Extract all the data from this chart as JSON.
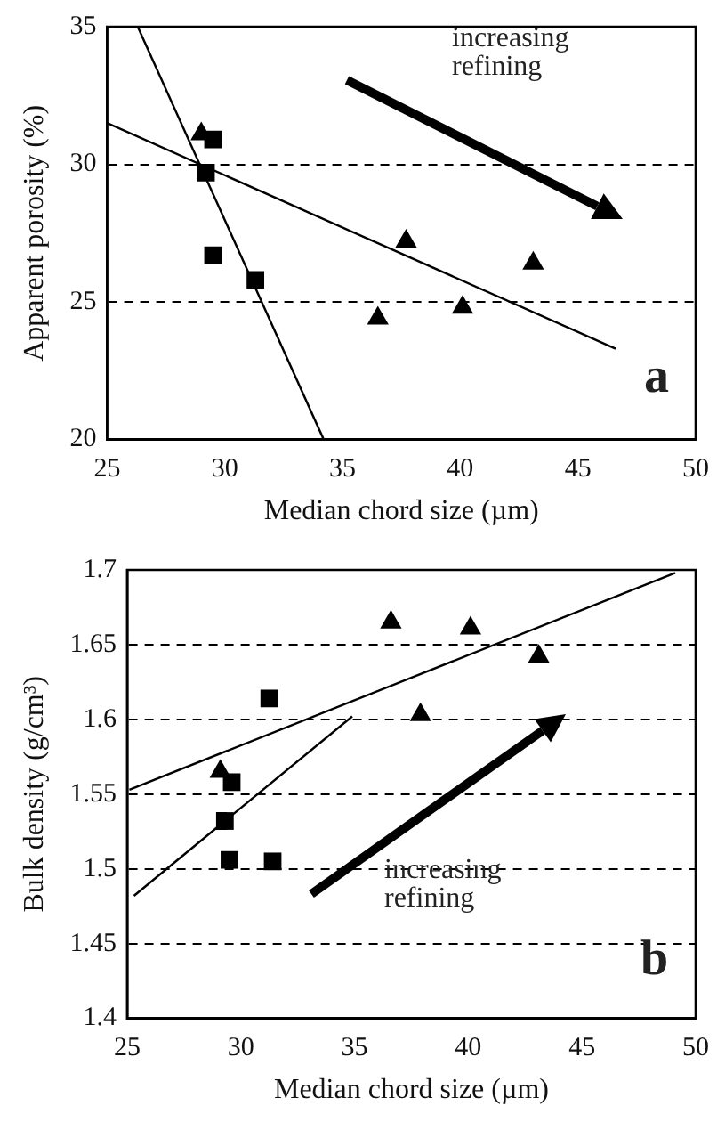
{
  "chart_data": [
    {
      "type": "scatter",
      "xlabel": "Median chord size (µm)",
      "ylabel": "Apparent porosity (%)",
      "xlim": [
        25,
        50
      ],
      "xticks": [
        25,
        30,
        35,
        40,
        45,
        50
      ],
      "ylim": [
        20,
        35
      ],
      "yticks": [
        20,
        25,
        30,
        35
      ],
      "grid": "y",
      "legend": false,
      "annotations": [
        "increasing refining",
        "a"
      ],
      "series": [
        {
          "color": "#000000",
          "marker": "square",
          "x": [
            29.5,
            29.2,
            29.5,
            31.3
          ],
          "values": [
            30.9,
            29.7,
            26.7,
            25.8
          ]
        },
        {
          "color": "#000000",
          "marker": "triangle",
          "x": [
            29.0,
            37.7,
            36.5,
            40.1,
            43.1
          ],
          "values": [
            31.1,
            27.2,
            24.4,
            24.8,
            26.4
          ]
        },
        {
          "type": "line",
          "color": "#000000",
          "marker": "none",
          "x": [
            26.3,
            34.2
          ],
          "values": [
            35,
            20
          ]
        },
        {
          "type": "line",
          "color": "#000000",
          "marker": "none",
          "x": [
            25,
            46.6
          ],
          "values": [
            31.5,
            23.3
          ]
        }
      ]
    },
    {
      "type": "scatter",
      "xlabel": "Median chord size (µm)",
      "ylabel": "Bulk density (g/cm³)",
      "xlim": [
        25,
        50
      ],
      "xticks": [
        25,
        30,
        35,
        40,
        45,
        50
      ],
      "ylim": [
        1.4,
        1.7
      ],
      "yticks": [
        1.4,
        1.45,
        1.5,
        1.55,
        1.6,
        1.65,
        1.7
      ],
      "grid": "y",
      "legend": false,
      "annotations": [
        "increasing refining",
        "b"
      ],
      "series": [
        {
          "color": "#000000",
          "marker": "square",
          "x": [
            31.25,
            29.6,
            29.3,
            29.5,
            31.4
          ],
          "values": [
            1.614,
            1.558,
            1.532,
            1.506,
            1.505
          ]
        },
        {
          "color": "#000000",
          "marker": "triangle",
          "x": [
            36.6,
            40.1,
            43.1,
            37.9,
            29.1
          ],
          "values": [
            1.665,
            1.661,
            1.642,
            1.603,
            1.565
          ]
        },
        {
          "type": "line",
          "color": "#000000",
          "marker": "none",
          "x": [
            25.1,
            49.1
          ],
          "values": [
            1.553,
            1.698
          ]
        },
        {
          "type": "line",
          "color": "#000000",
          "marker": "none",
          "x": [
            25.3,
            34.9
          ],
          "values": [
            1.482,
            1.602
          ]
        }
      ]
    }
  ]
}
